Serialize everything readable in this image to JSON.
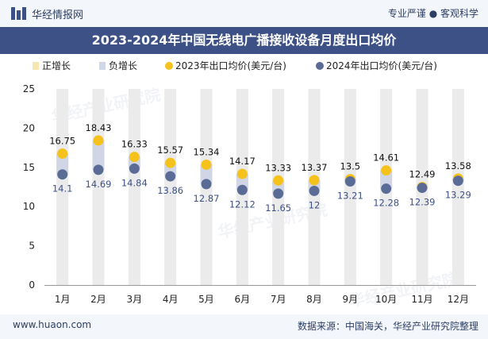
{
  "header": {
    "brand": "华经情报网",
    "tagline": "专业严谨 ● 客观科学"
  },
  "title": "2023-2024年中国无线电广播接收设备月度出口均价",
  "legend": [
    {
      "label": "正增长",
      "color": "#f6e6b4",
      "shape": "bar"
    },
    {
      "label": "负增长",
      "color": "#d0d6e6",
      "shape": "bar"
    },
    {
      "label": "2023年出口均价(美元/台)",
      "color": "#f5c21b",
      "shape": "dot"
    },
    {
      "label": "2024年出口均价(美元/台)",
      "color": "#5a6b95",
      "shape": "dot"
    }
  ],
  "chart_data": {
    "type": "line",
    "categories": [
      "1月",
      "2月",
      "3月",
      "4月",
      "5月",
      "6月",
      "7月",
      "8月",
      "9月",
      "10月",
      "11月",
      "12月"
    ],
    "series": [
      {
        "name": "2023年出口均价(美元/台)",
        "color": "#f5c21b",
        "values": [
          16.75,
          18.43,
          16.33,
          15.57,
          15.34,
          14.17,
          13.33,
          13.37,
          13.5,
          14.61,
          12.49,
          13.58
        ],
        "labels": [
          "16.75",
          "18.43",
          "16.33",
          "15.57",
          "15.34",
          "14.17",
          "13.33",
          "13.37",
          "13.5",
          "14.61",
          "12.49",
          "13.58"
        ]
      },
      {
        "name": "2024年出口均价(美元/台)",
        "color": "#5a6b95",
        "values": [
          14.1,
          14.69,
          14.84,
          13.86,
          12.87,
          12.12,
          11.65,
          12,
          13.21,
          12.28,
          12.39,
          13.29
        ],
        "labels": [
          "14.1",
          "14.69",
          "14.84",
          "13.86",
          "12.87",
          "12.12",
          "11.65",
          "12",
          "13.21",
          "12.28",
          "12.39",
          "13.29"
        ]
      }
    ],
    "yticks": [
      "0",
      "5",
      "10",
      "15",
      "20",
      "25"
    ],
    "ylim": [
      0,
      25
    ],
    "grid": false,
    "background_bar_color": "#ebebeb",
    "positive_color": "#f6e6b4",
    "negative_color": "#d0d6e6",
    "legend_position": "top"
  },
  "watermark": "华经产业研究院",
  "footer": {
    "site": "www.huaon.com",
    "source": "数据来源：中国海关，华经产业研究院整理"
  }
}
